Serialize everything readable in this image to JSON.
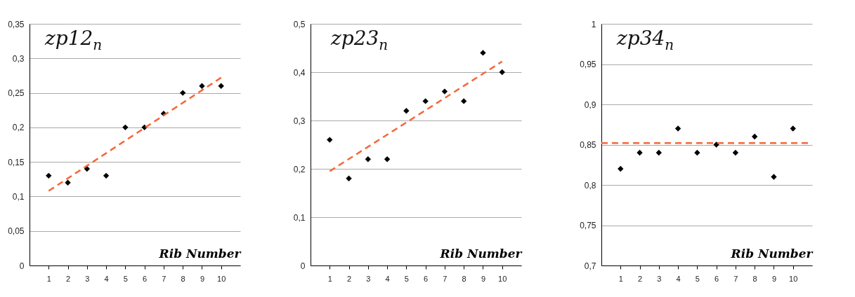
{
  "chart_data": [
    {
      "type": "scatter",
      "title": "zp12$_{n}$",
      "xlabel": "Rib Number",
      "x": [
        1,
        2,
        3,
        4,
        5,
        6,
        7,
        8,
        9,
        10
      ],
      "xlim": [
        0,
        11
      ],
      "xticks": [
        1,
        2,
        3,
        4,
        5,
        6,
        7,
        8,
        9,
        10
      ],
      "ylim": [
        0,
        0.35
      ],
      "yticks": [
        {
          "value": 0,
          "label": "0"
        },
        {
          "value": 0.05,
          "label": "0,05"
        },
        {
          "value": 0.1,
          "label": "0,1"
        },
        {
          "value": 0.15,
          "label": "0,15"
        },
        {
          "value": 0.2,
          "label": "0,2"
        },
        {
          "value": 0.25,
          "label": "0,25"
        },
        {
          "value": 0.3,
          "label": "0,3"
        },
        {
          "value": 0.35,
          "label": "0,35"
        }
      ],
      "grid": "y",
      "marker": "diamond",
      "series": [
        {
          "color": "#000000",
          "values": [
            0.13,
            0.12,
            0.14,
            0.13,
            0.2,
            0.2,
            0.22,
            0.25,
            0.26,
            0.26
          ]
        },
        {
          "type": "line",
          "x": [
            1,
            10
          ],
          "values": [
            0.108,
            0.272
          ],
          "color": "#f4683a",
          "line_style": "dashed",
          "marker": "none"
        }
      ]
    },
    {
      "type": "scatter",
      "title": "zp23$_{n}$",
      "xlabel": "Rib Number",
      "x": [
        1,
        2,
        3,
        4,
        5,
        6,
        7,
        8,
        9,
        10
      ],
      "xlim": [
        0,
        11
      ],
      "xticks": [
        1,
        2,
        3,
        4,
        5,
        6,
        7,
        8,
        9,
        10
      ],
      "ylim": [
        0,
        0.5
      ],
      "yticks": [
        {
          "value": 0,
          "label": "0"
        },
        {
          "value": 0.1,
          "label": "0,1"
        },
        {
          "value": 0.2,
          "label": "0,2"
        },
        {
          "value": 0.3,
          "label": "0,3"
        },
        {
          "value": 0.4,
          "label": "0,4"
        },
        {
          "value": 0.5,
          "label": "0,5"
        }
      ],
      "grid": "y",
      "marker": "diamond",
      "series": [
        {
          "color": "#000000",
          "values": [
            0.26,
            0.18,
            0.22,
            0.22,
            0.32,
            0.34,
            0.36,
            0.34,
            0.44,
            0.4
          ]
        },
        {
          "type": "line",
          "x": [
            1,
            10
          ],
          "values": [
            0.195,
            0.422
          ],
          "color": "#f4683a",
          "line_style": "dashed",
          "marker": "none"
        }
      ]
    },
    {
      "type": "scatter",
      "title": "zp34$_{n}$",
      "xlabel": "Rib Number",
      "x": [
        1,
        2,
        3,
        4,
        5,
        6,
        7,
        8,
        9,
        10
      ],
      "xlim": [
        0,
        11
      ],
      "xticks": [
        1,
        2,
        3,
        4,
        5,
        6,
        7,
        8,
        9,
        10
      ],
      "ylim": [
        0.7,
        1
      ],
      "yticks": [
        {
          "value": 0.7,
          "label": "0,7"
        },
        {
          "value": 0.75,
          "label": "0,75"
        },
        {
          "value": 0.8,
          "label": "0,8"
        },
        {
          "value": 0.85,
          "label": "0,85"
        },
        {
          "value": 0.9,
          "label": "0,9"
        },
        {
          "value": 0.95,
          "label": "0,95"
        },
        {
          "value": 1,
          "label": "1"
        }
      ],
      "grid": "y",
      "marker": "diamond",
      "series": [
        {
          "color": "#000000",
          "values": [
            0.82,
            0.84,
            0.84,
            0.87,
            0.84,
            0.85,
            0.84,
            0.86,
            0.81,
            0.87
          ]
        },
        {
          "type": "line",
          "x": [
            0,
            11
          ],
          "values": [
            0.852,
            0.852
          ],
          "color": "#f4683a",
          "line_style": "dashed",
          "marker": "none"
        }
      ]
    }
  ]
}
